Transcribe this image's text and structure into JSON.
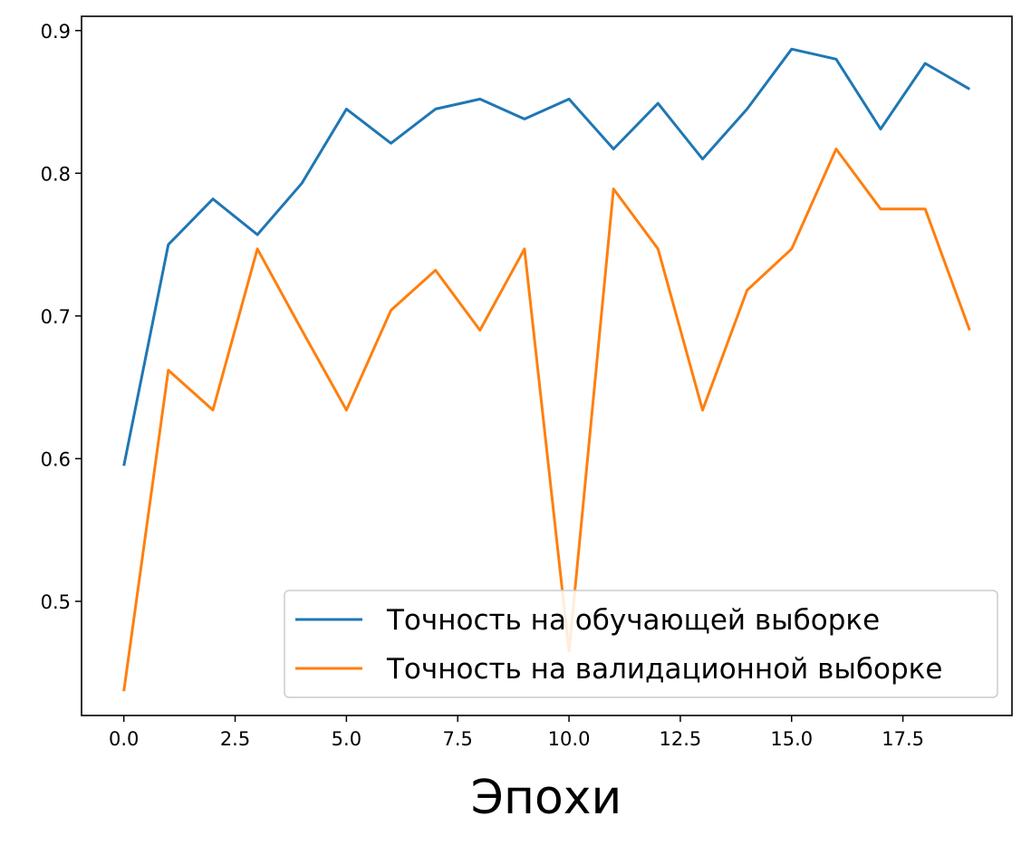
{
  "chart_data": {
    "type": "line",
    "title": "",
    "xlabel": "Эпохи",
    "ylabel": "",
    "xlim": [
      -0.95,
      19.95
    ],
    "ylim": [
      0.42,
      0.91
    ],
    "xticks": [
      0.0,
      2.5,
      5.0,
      7.5,
      10.0,
      12.5,
      15.0,
      17.5
    ],
    "xtick_labels": [
      "0.0",
      "2.5",
      "5.0",
      "7.5",
      "10.0",
      "12.5",
      "15.0",
      "17.5"
    ],
    "yticks": [
      0.5,
      0.6,
      0.7,
      0.8,
      0.9
    ],
    "ytick_labels": [
      "0.5",
      "0.6",
      "0.7",
      "0.8",
      "0.9"
    ],
    "grid": false,
    "legend_position": "lower-right",
    "x": [
      0,
      1,
      2,
      3,
      4,
      5,
      6,
      7,
      8,
      9,
      10,
      11,
      12,
      13,
      14,
      15,
      16,
      17,
      18,
      19
    ],
    "series": [
      {
        "name": "Точность на обучающей выборке",
        "color": "#1f77b4",
        "values": [
          0.595,
          0.75,
          0.782,
          0.757,
          0.793,
          0.845,
          0.821,
          0.845,
          0.852,
          0.838,
          0.852,
          0.817,
          0.849,
          0.81,
          0.845,
          0.887,
          0.88,
          0.831,
          0.877,
          0.859
        ]
      },
      {
        "name": "Точность на валидационной выборке",
        "color": "#ff7f0e",
        "values": [
          0.437,
          0.662,
          0.634,
          0.747,
          0.69,
          0.634,
          0.704,
          0.732,
          0.69,
          0.747,
          0.465,
          0.789,
          0.747,
          0.634,
          0.718,
          0.747,
          0.817,
          0.775,
          0.775,
          0.69
        ]
      }
    ]
  }
}
